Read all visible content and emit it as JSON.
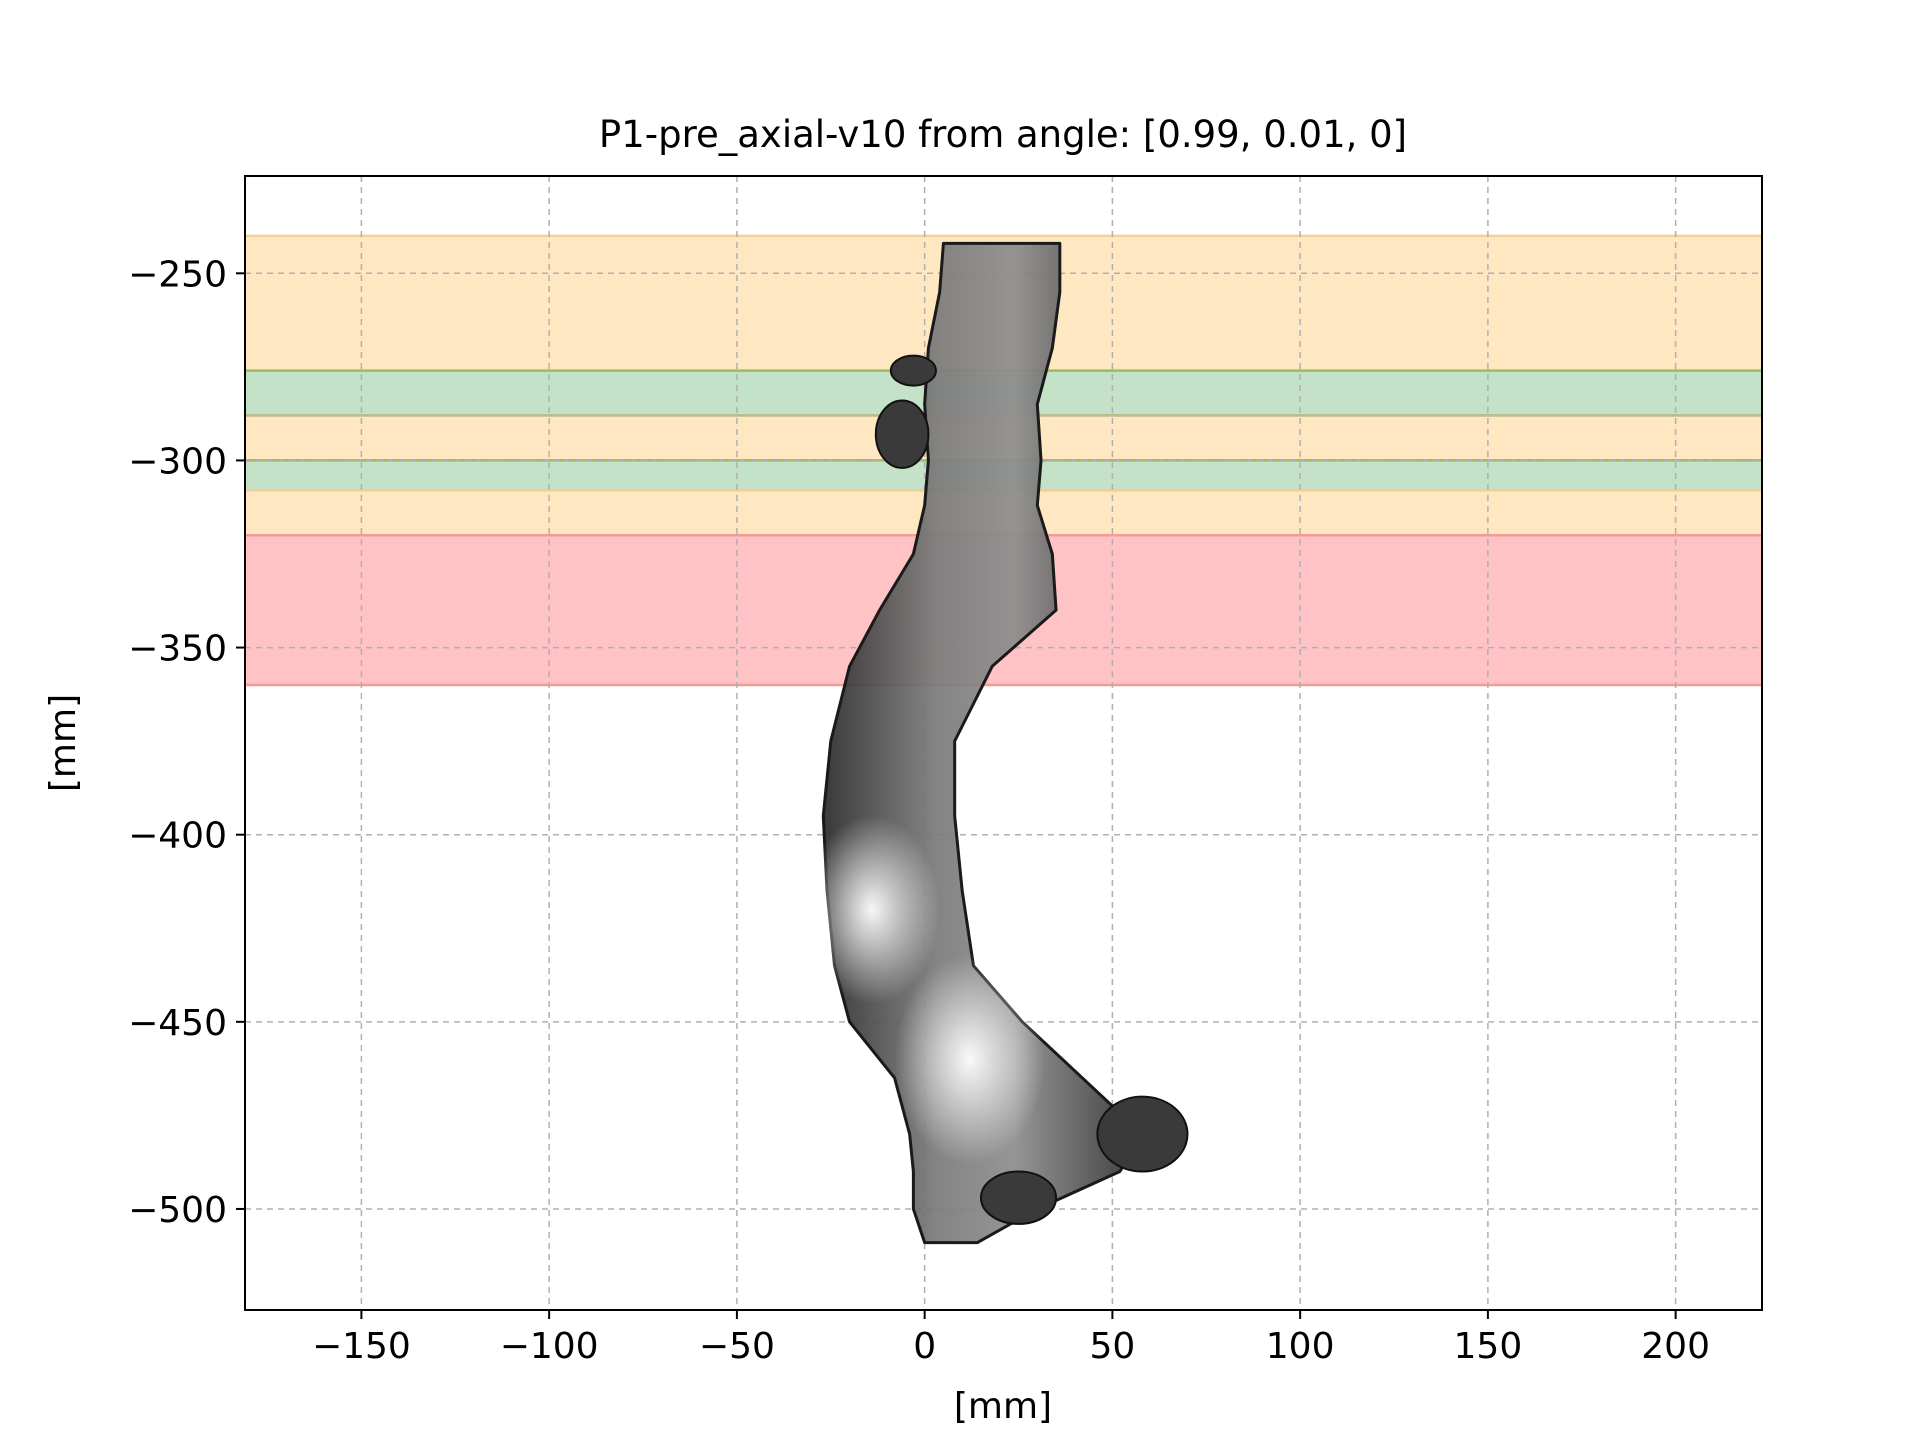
{
  "chart_data": {
    "type": "scatter",
    "title": "P1-pre_axial-v10 from angle: [0.99, 0.01, 0]",
    "xlabel": "[mm]",
    "ylabel": "[mm]",
    "xlim": [
      -181,
      223
    ],
    "ylim": [
      -527,
      -224
    ],
    "xticks": [
      -150,
      -100,
      -50,
      0,
      50,
      100,
      150,
      200
    ],
    "yticks": [
      -250,
      -300,
      -350,
      -400,
      -450,
      -500
    ],
    "xtick_labels": [
      "−150",
      "−100",
      "−50",
      "0",
      "50",
      "100",
      "150",
      "200"
    ],
    "ytick_labels": [
      "−250",
      "−300",
      "−350",
      "−400",
      "−450",
      "−500"
    ],
    "grid": true,
    "bands": [
      {
        "y0": -276,
        "y1": -240,
        "color": "#ffe6bf",
        "edge": "#f5cf95"
      },
      {
        "y0": -288,
        "y1": -276,
        "color": "#c0e0c4",
        "edge": "#9cbc60"
      },
      {
        "y0": -300,
        "y1": -288,
        "color": "#ffe6bf",
        "edge": "#c2b890"
      },
      {
        "y0": -308,
        "y1": -300,
        "color": "#c0e0c4",
        "edge": "#9cbc60"
      },
      {
        "y0": -320,
        "y1": -308,
        "color": "#ffe6bf",
        "edge": "#f5cf95"
      },
      {
        "y0": -360,
        "y1": -320,
        "color": "#ffc0c2",
        "edge": "#f39b96"
      }
    ],
    "shape_sections": [
      {
        "y": -242,
        "x": [
          5,
          36
        ]
      },
      {
        "y": -255,
        "x": [
          4,
          36
        ]
      },
      {
        "y": -270,
        "x": [
          1,
          34
        ]
      },
      {
        "y": -285,
        "x": [
          0,
          30
        ]
      },
      {
        "y": -300,
        "x": [
          1,
          31
        ]
      },
      {
        "y": -312,
        "x": [
          0,
          30
        ]
      },
      {
        "y": -325,
        "x": [
          -3,
          34
        ]
      },
      {
        "y": -340,
        "x": [
          -12,
          35
        ]
      },
      {
        "y": -355,
        "x": [
          -20,
          18
        ]
      },
      {
        "y": -375,
        "x": [
          -25,
          8
        ]
      },
      {
        "y": -395,
        "x": [
          -27,
          8
        ]
      },
      {
        "y": -415,
        "x": [
          -26,
          10
        ]
      },
      {
        "y": -435,
        "x": [
          -24,
          13
        ]
      },
      {
        "y": -450,
        "x": [
          -20,
          26
        ]
      },
      {
        "y": -465,
        "x": [
          -8,
          42
        ]
      },
      {
        "y": -480,
        "x": [
          -4,
          58
        ]
      },
      {
        "y": -490,
        "x": [
          -3,
          52
        ]
      },
      {
        "y": -500,
        "x": [
          -3,
          30
        ]
      },
      {
        "y": -509,
        "x": [
          0,
          14
        ]
      }
    ],
    "side_lobes": [
      {
        "cx": -3,
        "cy": -276,
        "rx": 6,
        "ry": 4
      },
      {
        "cx": -6,
        "cy": -293,
        "rx": 7,
        "ry": 9
      },
      {
        "cx": 58,
        "cy": -480,
        "rx": 12,
        "ry": 10
      },
      {
        "cx": 25,
        "cy": -497,
        "rx": 10,
        "ry": 7
      }
    ],
    "bright_spots": [
      {
        "cx": -14,
        "cy": -420,
        "r": 18
      },
      {
        "cx": 12,
        "cy": -460,
        "r": 20
      }
    ]
  }
}
